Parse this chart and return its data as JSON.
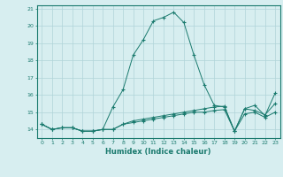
{
  "xlabel": "Humidex (Indice chaleur)",
  "ylabel": "",
  "x_values": [
    0,
    1,
    2,
    3,
    4,
    5,
    6,
    7,
    8,
    9,
    10,
    11,
    12,
    13,
    14,
    15,
    16,
    17,
    18,
    19,
    20,
    21,
    22,
    23
  ],
  "line1_y": [
    14.3,
    14.0,
    14.1,
    14.1,
    13.9,
    13.9,
    14.0,
    15.3,
    16.3,
    18.3,
    19.2,
    20.3,
    20.5,
    20.8,
    20.2,
    18.3,
    16.6,
    15.4,
    15.3,
    13.9,
    15.2,
    15.4,
    14.8,
    16.1
  ],
  "line2_y": [
    14.3,
    14.0,
    14.1,
    14.1,
    13.9,
    13.9,
    14.0,
    14.0,
    14.3,
    14.5,
    14.6,
    14.7,
    14.8,
    14.9,
    15.0,
    15.1,
    15.2,
    15.3,
    15.35,
    13.9,
    15.2,
    15.1,
    14.85,
    15.5
  ],
  "line3_y": [
    14.3,
    14.0,
    14.1,
    14.1,
    13.9,
    13.9,
    14.0,
    14.0,
    14.3,
    14.4,
    14.5,
    14.6,
    14.7,
    14.8,
    14.9,
    15.0,
    15.0,
    15.1,
    15.15,
    13.9,
    14.9,
    15.0,
    14.7,
    15.0
  ],
  "line_color": "#1a7a6e",
  "bg_color": "#d7eef0",
  "grid_color": "#b0d4d8",
  "ylim": [
    13.5,
    21.2
  ],
  "xlim": [
    -0.5,
    23.5
  ],
  "yticks": [
    14,
    15,
    16,
    17,
    18,
    19,
    20,
    21
  ],
  "xticks": [
    0,
    1,
    2,
    3,
    4,
    5,
    6,
    7,
    8,
    9,
    10,
    11,
    12,
    13,
    14,
    15,
    16,
    17,
    18,
    19,
    20,
    21,
    22,
    23
  ]
}
